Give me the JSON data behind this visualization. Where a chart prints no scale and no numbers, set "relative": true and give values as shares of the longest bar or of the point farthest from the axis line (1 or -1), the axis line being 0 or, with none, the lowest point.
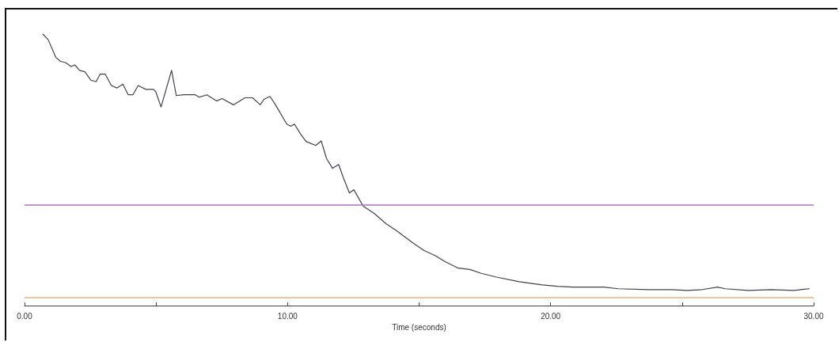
{
  "chart_data": {
    "type": "line",
    "xlabel": "Time (seconds)",
    "relative": true,
    "xlim": [
      0,
      30
    ],
    "xticks": [
      {
        "value": 0,
        "label": "0.00"
      },
      {
        "value": 5,
        "label": null
      },
      {
        "value": 10,
        "label": "10.00"
      },
      {
        "value": 15,
        "label": null
      },
      {
        "value": 20,
        "label": "20.00"
      },
      {
        "value": 25,
        "label": null
      },
      {
        "value": 30,
        "label": "30.00"
      }
    ],
    "x": [
      0.7,
      0.9,
      1.19,
      1.36,
      1.57,
      1.77,
      1.91,
      2.09,
      2.29,
      2.52,
      2.72,
      2.87,
      3.07,
      3.3,
      3.51,
      3.74,
      3.94,
      4.12,
      4.32,
      4.61,
      4.9,
      4.99,
      5.19,
      5.59,
      5.77,
      6.06,
      6.49,
      6.64,
      6.93,
      7.3,
      7.51,
      7.94,
      8.38,
      8.67,
      8.96,
      9.1,
      9.33,
      9.54,
      9.97,
      10.12,
      10.26,
      10.49,
      10.7,
      11.07,
      11.28,
      11.48,
      11.71,
      11.94,
      12.14,
      12.35,
      12.52,
      12.87,
      13.3,
      13.74,
      14.17,
      14.75,
      15.19,
      15.62,
      16.0,
      16.49,
      16.93,
      17.36,
      17.94,
      18.81,
      19.68,
      20.26,
      20.84,
      22.0,
      22.58,
      23.74,
      24.61,
      25.19,
      25.77,
      26.35,
      26.64,
      27.51,
      28.38,
      29.25,
      29.83
    ],
    "series": [
      {
        "color": "#404050",
        "values": [
          1.0,
          0.98,
          0.915,
          0.901,
          0.895,
          0.881,
          0.887,
          0.867,
          0.862,
          0.831,
          0.825,
          0.853,
          0.853,
          0.811,
          0.802,
          0.816,
          0.777,
          0.777,
          0.811,
          0.797,
          0.797,
          0.788,
          0.732,
          0.867,
          0.774,
          0.777,
          0.777,
          0.768,
          0.777,
          0.754,
          0.763,
          0.74,
          0.766,
          0.766,
          0.74,
          0.76,
          0.771,
          0.74,
          0.669,
          0.661,
          0.669,
          0.633,
          0.605,
          0.59,
          0.607,
          0.542,
          0.506,
          0.52,
          0.466,
          0.415,
          0.427,
          0.367,
          0.339,
          0.302,
          0.274,
          0.232,
          0.203,
          0.184,
          0.161,
          0.138,
          0.133,
          0.119,
          0.105,
          0.088,
          0.076,
          0.071,
          0.068,
          0.068,
          0.062,
          0.059,
          0.059,
          0.056,
          0.059,
          0.068,
          0.062,
          0.056,
          0.059,
          0.056,
          0.062
        ]
      }
    ],
    "ref_lines": [
      {
        "axis": "y",
        "value": 0.367,
        "color": "#b070c0"
      },
      {
        "axis": "y",
        "value": 0.031,
        "color": "#f0b080"
      }
    ],
    "marker": "none",
    "line_style": "solid"
  }
}
